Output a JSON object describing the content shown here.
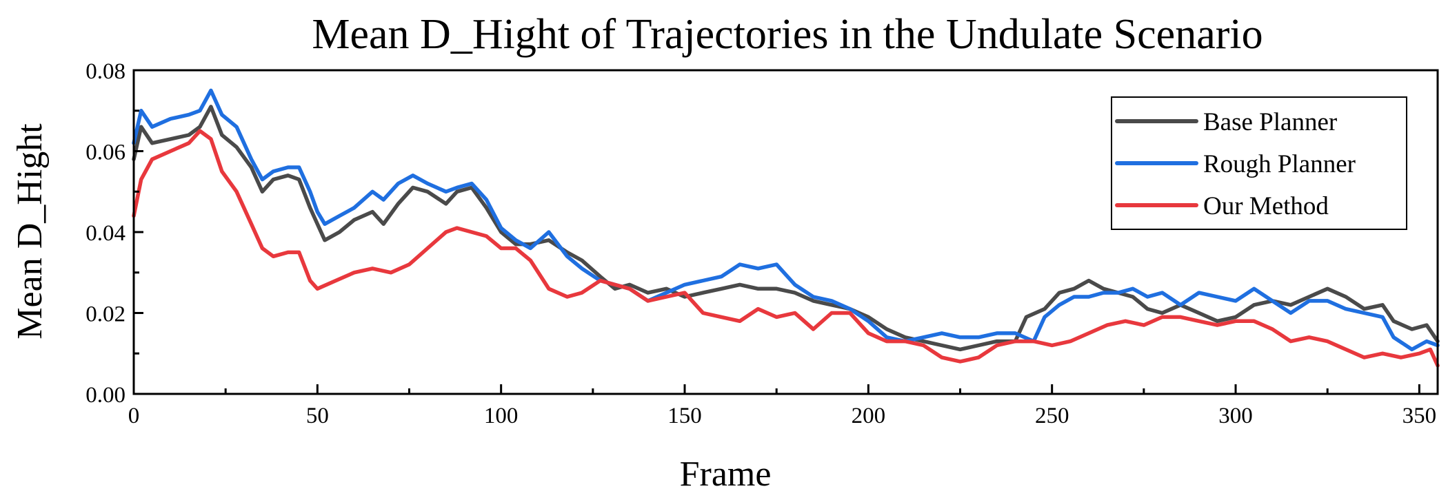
{
  "chart_data": {
    "type": "line",
    "title": "Mean D_Hight of Trajectories in the Undulate Scenario",
    "xlabel": "Frame",
    "ylabel": "Mean D_Hight",
    "xlim": [
      0,
      355
    ],
    "ylim": [
      0,
      0.08
    ],
    "xticks": [
      0,
      50,
      100,
      150,
      200,
      250,
      300,
      350
    ],
    "yticks": [
      0,
      0.02,
      0.04,
      0.06,
      0.08
    ],
    "xtick_labels": [
      "0",
      "50",
      "100",
      "150",
      "200",
      "250",
      "300",
      "350"
    ],
    "ytick_labels": [
      "0.00",
      "0.02",
      "0.04",
      "0.06",
      "0.08"
    ],
    "grid": false,
    "legend_position": "top-right",
    "series": [
      {
        "name": "Base Planner",
        "color": "#4a4a4a",
        "points": [
          [
            0,
            0.058
          ],
          [
            2,
            0.066
          ],
          [
            5,
            0.062
          ],
          [
            10,
            0.063
          ],
          [
            15,
            0.064
          ],
          [
            18,
            0.066
          ],
          [
            21,
            0.071
          ],
          [
            24,
            0.064
          ],
          [
            28,
            0.061
          ],
          [
            32,
            0.056
          ],
          [
            35,
            0.05
          ],
          [
            38,
            0.053
          ],
          [
            42,
            0.054
          ],
          [
            45,
            0.053
          ],
          [
            48,
            0.046
          ],
          [
            50,
            0.042
          ],
          [
            52,
            0.038
          ],
          [
            56,
            0.04
          ],
          [
            60,
            0.043
          ],
          [
            65,
            0.045
          ],
          [
            68,
            0.042
          ],
          [
            72,
            0.047
          ],
          [
            76,
            0.051
          ],
          [
            80,
            0.05
          ],
          [
            85,
            0.047
          ],
          [
            88,
            0.05
          ],
          [
            92,
            0.051
          ],
          [
            96,
            0.046
          ],
          [
            100,
            0.04
          ],
          [
            104,
            0.037
          ],
          [
            108,
            0.037
          ],
          [
            113,
            0.038
          ],
          [
            118,
            0.035
          ],
          [
            122,
            0.033
          ],
          [
            127,
            0.029
          ],
          [
            131,
            0.026
          ],
          [
            135,
            0.027
          ],
          [
            140,
            0.025
          ],
          [
            145,
            0.026
          ],
          [
            150,
            0.024
          ],
          [
            155,
            0.025
          ],
          [
            160,
            0.026
          ],
          [
            165,
            0.027
          ],
          [
            170,
            0.026
          ],
          [
            175,
            0.026
          ],
          [
            180,
            0.025
          ],
          [
            185,
            0.023
          ],
          [
            190,
            0.022
          ],
          [
            195,
            0.021
          ],
          [
            200,
            0.019
          ],
          [
            205,
            0.016
          ],
          [
            210,
            0.014
          ],
          [
            215,
            0.013
          ],
          [
            220,
            0.012
          ],
          [
            225,
            0.011
          ],
          [
            230,
            0.012
          ],
          [
            235,
            0.013
          ],
          [
            240,
            0.013
          ],
          [
            243,
            0.019
          ],
          [
            248,
            0.021
          ],
          [
            252,
            0.025
          ],
          [
            256,
            0.026
          ],
          [
            260,
            0.028
          ],
          [
            264,
            0.026
          ],
          [
            268,
            0.025
          ],
          [
            272,
            0.024
          ],
          [
            276,
            0.021
          ],
          [
            280,
            0.02
          ],
          [
            285,
            0.022
          ],
          [
            290,
            0.02
          ],
          [
            295,
            0.018
          ],
          [
            300,
            0.019
          ],
          [
            305,
            0.022
          ],
          [
            310,
            0.023
          ],
          [
            315,
            0.022
          ],
          [
            320,
            0.024
          ],
          [
            325,
            0.026
          ],
          [
            330,
            0.024
          ],
          [
            335,
            0.021
          ],
          [
            340,
            0.022
          ],
          [
            343,
            0.018
          ],
          [
            348,
            0.016
          ],
          [
            352,
            0.017
          ],
          [
            355,
            0.013
          ]
        ]
      },
      {
        "name": "Rough Planner",
        "color": "#1f6fe0",
        "points": [
          [
            0,
            0.062
          ],
          [
            2,
            0.07
          ],
          [
            5,
            0.066
          ],
          [
            10,
            0.068
          ],
          [
            15,
            0.069
          ],
          [
            18,
            0.07
          ],
          [
            21,
            0.075
          ],
          [
            24,
            0.069
          ],
          [
            28,
            0.066
          ],
          [
            32,
            0.058
          ],
          [
            35,
            0.053
          ],
          [
            38,
            0.055
          ],
          [
            42,
            0.056
          ],
          [
            45,
            0.056
          ],
          [
            48,
            0.05
          ],
          [
            50,
            0.045
          ],
          [
            52,
            0.042
          ],
          [
            56,
            0.044
          ],
          [
            60,
            0.046
          ],
          [
            65,
            0.05
          ],
          [
            68,
            0.048
          ],
          [
            72,
            0.052
          ],
          [
            76,
            0.054
          ],
          [
            80,
            0.052
          ],
          [
            85,
            0.05
          ],
          [
            88,
            0.051
          ],
          [
            92,
            0.052
          ],
          [
            96,
            0.048
          ],
          [
            100,
            0.041
          ],
          [
            104,
            0.038
          ],
          [
            108,
            0.036
          ],
          [
            113,
            0.04
          ],
          [
            118,
            0.034
          ],
          [
            122,
            0.031
          ],
          [
            127,
            0.028
          ],
          [
            131,
            0.027
          ],
          [
            135,
            0.026
          ],
          [
            140,
            0.023
          ],
          [
            145,
            0.025
          ],
          [
            150,
            0.027
          ],
          [
            155,
            0.028
          ],
          [
            160,
            0.029
          ],
          [
            165,
            0.032
          ],
          [
            170,
            0.031
          ],
          [
            175,
            0.032
          ],
          [
            180,
            0.027
          ],
          [
            185,
            0.024
          ],
          [
            190,
            0.023
          ],
          [
            195,
            0.021
          ],
          [
            200,
            0.018
          ],
          [
            205,
            0.014
          ],
          [
            210,
            0.013
          ],
          [
            215,
            0.014
          ],
          [
            220,
            0.015
          ],
          [
            225,
            0.014
          ],
          [
            230,
            0.014
          ],
          [
            235,
            0.015
          ],
          [
            240,
            0.015
          ],
          [
            245,
            0.013
          ],
          [
            248,
            0.019
          ],
          [
            252,
            0.022
          ],
          [
            256,
            0.024
          ],
          [
            260,
            0.024
          ],
          [
            264,
            0.025
          ],
          [
            268,
            0.025
          ],
          [
            272,
            0.026
          ],
          [
            276,
            0.024
          ],
          [
            280,
            0.025
          ],
          [
            285,
            0.022
          ],
          [
            290,
            0.025
          ],
          [
            295,
            0.024
          ],
          [
            300,
            0.023
          ],
          [
            305,
            0.026
          ],
          [
            310,
            0.023
          ],
          [
            315,
            0.02
          ],
          [
            320,
            0.023
          ],
          [
            325,
            0.023
          ],
          [
            330,
            0.021
          ],
          [
            335,
            0.02
          ],
          [
            340,
            0.019
          ],
          [
            343,
            0.014
          ],
          [
            348,
            0.011
          ],
          [
            352,
            0.013
          ],
          [
            355,
            0.012
          ]
        ]
      },
      {
        "name": "Our Method",
        "color": "#e8383d",
        "points": [
          [
            0,
            0.044
          ],
          [
            2,
            0.053
          ],
          [
            5,
            0.058
          ],
          [
            10,
            0.06
          ],
          [
            15,
            0.062
          ],
          [
            18,
            0.065
          ],
          [
            21,
            0.063
          ],
          [
            24,
            0.055
          ],
          [
            28,
            0.05
          ],
          [
            32,
            0.042
          ],
          [
            35,
            0.036
          ],
          [
            38,
            0.034
          ],
          [
            42,
            0.035
          ],
          [
            45,
            0.035
          ],
          [
            48,
            0.028
          ],
          [
            50,
            0.026
          ],
          [
            55,
            0.028
          ],
          [
            60,
            0.03
          ],
          [
            65,
            0.031
          ],
          [
            70,
            0.03
          ],
          [
            75,
            0.032
          ],
          [
            80,
            0.036
          ],
          [
            85,
            0.04
          ],
          [
            88,
            0.041
          ],
          [
            92,
            0.04
          ],
          [
            96,
            0.039
          ],
          [
            100,
            0.036
          ],
          [
            104,
            0.036
          ],
          [
            108,
            0.033
          ],
          [
            113,
            0.026
          ],
          [
            118,
            0.024
          ],
          [
            122,
            0.025
          ],
          [
            127,
            0.028
          ],
          [
            131,
            0.027
          ],
          [
            135,
            0.026
          ],
          [
            140,
            0.023
          ],
          [
            145,
            0.024
          ],
          [
            150,
            0.025
          ],
          [
            155,
            0.02
          ],
          [
            160,
            0.019
          ],
          [
            165,
            0.018
          ],
          [
            170,
            0.021
          ],
          [
            175,
            0.019
          ],
          [
            180,
            0.02
          ],
          [
            185,
            0.016
          ],
          [
            190,
            0.02
          ],
          [
            195,
            0.02
          ],
          [
            200,
            0.015
          ],
          [
            205,
            0.013
          ],
          [
            210,
            0.013
          ],
          [
            215,
            0.012
          ],
          [
            220,
            0.009
          ],
          [
            225,
            0.008
          ],
          [
            230,
            0.009
          ],
          [
            235,
            0.012
          ],
          [
            240,
            0.013
          ],
          [
            245,
            0.013
          ],
          [
            250,
            0.012
          ],
          [
            255,
            0.013
          ],
          [
            260,
            0.015
          ],
          [
            265,
            0.017
          ],
          [
            270,
            0.018
          ],
          [
            275,
            0.017
          ],
          [
            280,
            0.019
          ],
          [
            285,
            0.019
          ],
          [
            290,
            0.018
          ],
          [
            295,
            0.017
          ],
          [
            300,
            0.018
          ],
          [
            305,
            0.018
          ],
          [
            310,
            0.016
          ],
          [
            315,
            0.013
          ],
          [
            320,
            0.014
          ],
          [
            325,
            0.013
          ],
          [
            330,
            0.011
          ],
          [
            335,
            0.009
          ],
          [
            340,
            0.01
          ],
          [
            345,
            0.009
          ],
          [
            350,
            0.01
          ],
          [
            353,
            0.011
          ],
          [
            355,
            0.007
          ]
        ]
      }
    ]
  }
}
